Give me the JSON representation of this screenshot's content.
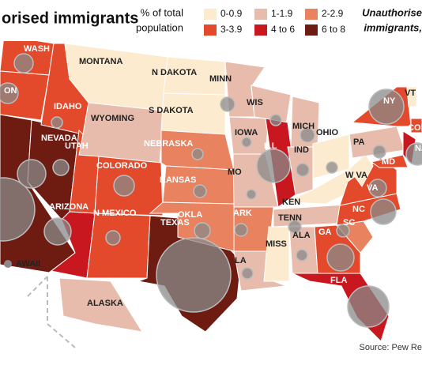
{
  "header": {
    "title": "orised immigrants",
    "legend_title": [
      "% of total",
      "population"
    ],
    "right_title": [
      "Unauthorise",
      "immigrants,"
    ]
  },
  "legend": [
    {
      "label": "0-0.9",
      "color": "#fcebcf"
    },
    {
      "label": "1-1.9",
      "color": "#e8bcad"
    },
    {
      "label": "2-2.9",
      "color": "#e8825f"
    },
    {
      "label": "3-3.9",
      "color": "#e34a2b"
    },
    {
      "label": "4 to 6",
      "color": "#c8171e"
    },
    {
      "label": "6 to 8",
      "color": "#6e1c12"
    }
  ],
  "states": [
    {
      "label": "WASH",
      "color": "#e34a2b"
    },
    {
      "label": "ON",
      "color": "#e34a2b"
    },
    {
      "label": "",
      "color": "#6e1c12"
    },
    {
      "label": "NEVADA",
      "color": "#6e1c12"
    },
    {
      "label": "IDAHO",
      "color": "#e34a2b"
    },
    {
      "label": "MONTANA",
      "color": "#fcebcf"
    },
    {
      "label": "WYOMING",
      "color": "#e8bcad"
    },
    {
      "label": "UTAH",
      "color": "#e34a2b"
    },
    {
      "label": "COLORADO",
      "color": "#e34a2b"
    },
    {
      "label": "ARIZONA",
      "color": "#c8171e"
    },
    {
      "label": "N MEXICO",
      "color": "#e34a2b"
    },
    {
      "label": "TEXAS",
      "color": "#6e1c12"
    },
    {
      "label": "N DAKOTA",
      "color": "#fcebcf"
    },
    {
      "label": "S DAKOTA",
      "color": "#fcebcf"
    },
    {
      "label": "NEBRASKA",
      "color": "#e8825f"
    },
    {
      "label": "KANSAS",
      "color": "#e8825f"
    },
    {
      "label": "OKLA",
      "color": "#e8825f"
    },
    {
      "label": "MINN",
      "color": "#e8bcad"
    },
    {
      "label": "IOWA",
      "color": "#e8bcad"
    },
    {
      "label": "MO",
      "color": "#e8bcad"
    },
    {
      "label": "ARK",
      "color": "#e8825f"
    },
    {
      "label": "LA",
      "color": "#e8bcad"
    },
    {
      "label": "WIS",
      "color": "#e8bcad"
    },
    {
      "label": "ILL",
      "color": "#c8171e"
    },
    {
      "label": "MICH",
      "color": "#e8bcad"
    },
    {
      "label": "IND",
      "color": "#e8bcad"
    },
    {
      "label": "OHIO",
      "color": "#fcebcf"
    },
    {
      "label": "KEN",
      "color": "#fcebcf"
    },
    {
      "label": "TENN",
      "color": "#e8bcad"
    },
    {
      "label": "MISS",
      "color": "#fcebcf"
    },
    {
      "label": "ALA",
      "color": "#e8bcad"
    },
    {
      "label": "GA",
      "color": "#e34a2b"
    },
    {
      "label": "FLA",
      "color": "#c8171e"
    },
    {
      "label": "SC",
      "color": "#e8825f"
    },
    {
      "label": "NC",
      "color": "#e34a2b"
    },
    {
      "label": "VA",
      "color": "#e34a2b"
    },
    {
      "label": "W VA",
      "color": "#fcebcf"
    },
    {
      "label": "PA",
      "color": "#e8bcad"
    },
    {
      "label": "NY",
      "color": "#e34a2b"
    },
    {
      "label": "NJ",
      "color": "#c8171e"
    },
    {
      "label": "MD",
      "color": "#e34a2b"
    },
    {
      "label": "VT",
      "color": "#fcebcf"
    },
    {
      "label": "CONN",
      "color": "#e34a2b"
    },
    {
      "label": "ALASKA",
      "color": "#e8bcad"
    }
  ],
  "hawaii": "AWAII",
  "source": "Source: Pew Re"
}
